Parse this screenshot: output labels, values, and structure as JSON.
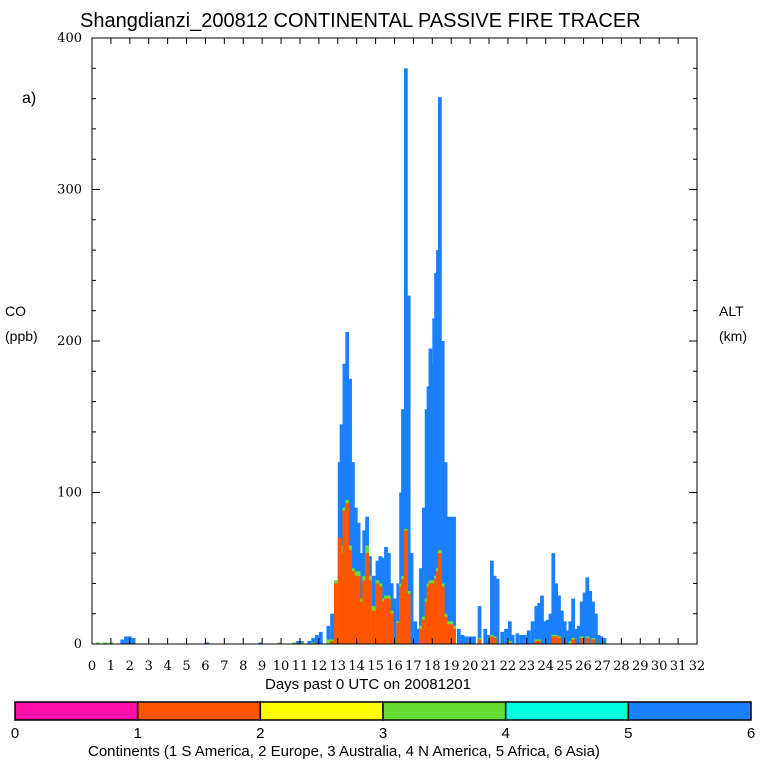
{
  "chart_data": {
    "type": "bar",
    "title": "Shangdianzi_200812 CONTINENTAL PASSIVE FIRE TRACER",
    "panel_label": "a)",
    "ylabel": [
      "CO",
      "(ppb)"
    ],
    "right_label": [
      "ALT",
      "(km)"
    ],
    "xlabel": "Days past 0 UTC on 20081201",
    "ylim": [
      0,
      400
    ],
    "yticks": [
      0,
      100,
      200,
      300,
      400
    ],
    "xlim": [
      0,
      32
    ],
    "xticks": [
      "0",
      "1",
      "2",
      "3",
      "4",
      "5",
      "6",
      "7",
      "8",
      "9",
      "10",
      "11",
      "12",
      "13",
      "14",
      "15",
      "16",
      "17",
      "18",
      "19",
      "20",
      "21",
      "22",
      "23",
      "24",
      "25",
      "26",
      "27",
      "28",
      "29",
      "30",
      "31",
      "32"
    ],
    "bar_width_days": 0.2,
    "series": [
      {
        "name": "Asia",
        "color": "#1a80ff",
        "points": [
          [
            0.2,
            1
          ],
          [
            0.6,
            1
          ],
          [
            0.9,
            1
          ],
          [
            1.5,
            3
          ],
          [
            1.7,
            5
          ],
          [
            1.9,
            5
          ],
          [
            2.1,
            4
          ],
          [
            6.0,
            1
          ],
          [
            8.8,
            1
          ],
          [
            9.8,
            1
          ],
          [
            10.6,
            1
          ],
          [
            10.8,
            2
          ],
          [
            11.0,
            2
          ],
          [
            11.4,
            2
          ],
          [
            11.6,
            4
          ],
          [
            11.8,
            6
          ],
          [
            12.0,
            8
          ],
          [
            12.4,
            12
          ],
          [
            12.6,
            20
          ],
          [
            12.8,
            40
          ],
          [
            13.0,
            120
          ],
          [
            13.1,
            145
          ],
          [
            13.25,
            185
          ],
          [
            13.4,
            206
          ],
          [
            13.55,
            175
          ],
          [
            13.7,
            120
          ],
          [
            13.85,
            90
          ],
          [
            14.0,
            80
          ],
          [
            14.15,
            60
          ],
          [
            14.3,
            75
          ],
          [
            14.45,
            84
          ],
          [
            14.6,
            58
          ],
          [
            14.8,
            45
          ],
          [
            15.0,
            55
          ],
          [
            15.15,
            58
          ],
          [
            15.3,
            57
          ],
          [
            15.45,
            64
          ],
          [
            15.6,
            60
          ],
          [
            15.75,
            40
          ],
          [
            15.9,
            30
          ],
          [
            16.1,
            40
          ],
          [
            16.25,
            100
          ],
          [
            16.35,
            155
          ],
          [
            16.5,
            380
          ],
          [
            16.65,
            230
          ],
          [
            16.8,
            60
          ],
          [
            17.0,
            15
          ],
          [
            17.15,
            10
          ],
          [
            17.3,
            50
          ],
          [
            17.45,
            90
          ],
          [
            17.6,
            155
          ],
          [
            17.7,
            170
          ],
          [
            17.8,
            195
          ],
          [
            17.9,
            185
          ],
          [
            18.0,
            215
          ],
          [
            18.1,
            245
          ],
          [
            18.2,
            260
          ],
          [
            18.3,
            361
          ],
          [
            18.45,
            200
          ],
          [
            18.6,
            120
          ],
          [
            18.75,
            84
          ],
          [
            18.9,
            84
          ],
          [
            19.05,
            84
          ],
          [
            19.3,
            10
          ],
          [
            19.5,
            6
          ],
          [
            19.7,
            5
          ],
          [
            19.9,
            5
          ],
          [
            20.1,
            5
          ],
          [
            20.4,
            25
          ],
          [
            20.7,
            10
          ],
          [
            20.9,
            6
          ],
          [
            21.05,
            55
          ],
          [
            21.2,
            45
          ],
          [
            21.35,
            43
          ],
          [
            21.6,
            8
          ],
          [
            21.8,
            10
          ],
          [
            22.0,
            15
          ],
          [
            22.15,
            6
          ],
          [
            22.4,
            7
          ],
          [
            22.6,
            6
          ],
          [
            22.8,
            6
          ],
          [
            23.0,
            9
          ],
          [
            23.2,
            15
          ],
          [
            23.4,
            25
          ],
          [
            23.55,
            27
          ],
          [
            23.7,
            32
          ],
          [
            23.85,
            15
          ],
          [
            24.0,
            16
          ],
          [
            24.15,
            20
          ],
          [
            24.3,
            60
          ],
          [
            24.45,
            40
          ],
          [
            24.6,
            32
          ],
          [
            24.75,
            22
          ],
          [
            24.9,
            15
          ],
          [
            25.05,
            9
          ],
          [
            25.2,
            15
          ],
          [
            25.35,
            30
          ],
          [
            25.5,
            10
          ],
          [
            25.65,
            12
          ],
          [
            25.8,
            28
          ],
          [
            25.95,
            34
          ],
          [
            26.1,
            44
          ],
          [
            26.25,
            35
          ],
          [
            26.4,
            28
          ],
          [
            26.55,
            20
          ],
          [
            26.7,
            6
          ],
          [
            26.85,
            5
          ],
          [
            27.0,
            4
          ]
        ]
      },
      {
        "name": "N America",
        "color": "#66dd33",
        "points": [
          [
            0.2,
            1
          ],
          [
            0.6,
            1
          ],
          [
            0.9,
            1
          ],
          [
            9.8,
            1
          ],
          [
            10.6,
            1
          ],
          [
            11.0,
            1
          ],
          [
            11.6,
            1
          ],
          [
            12.4,
            3
          ],
          [
            12.6,
            3
          ],
          [
            12.8,
            42
          ],
          [
            13.0,
            70
          ],
          [
            13.1,
            65
          ],
          [
            13.25,
            90
          ],
          [
            13.4,
            95
          ],
          [
            13.55,
            65
          ],
          [
            13.7,
            50
          ],
          [
            13.85,
            48
          ],
          [
            14.0,
            48
          ],
          [
            14.15,
            30
          ],
          [
            14.3,
            45
          ],
          [
            14.45,
            65
          ],
          [
            14.6,
            45
          ],
          [
            14.8,
            25
          ],
          [
            15.0,
            42
          ],
          [
            15.15,
            40
          ],
          [
            15.3,
            30
          ],
          [
            15.45,
            32
          ],
          [
            15.6,
            32
          ],
          [
            15.75,
            22
          ],
          [
            16.1,
            15
          ],
          [
            16.25,
            40
          ],
          [
            16.35,
            45
          ],
          [
            16.5,
            76
          ],
          [
            16.65,
            35
          ],
          [
            17.3,
            12
          ],
          [
            17.45,
            18
          ],
          [
            17.6,
            30
          ],
          [
            17.7,
            40
          ],
          [
            17.8,
            42
          ],
          [
            17.9,
            42
          ],
          [
            18.0,
            40
          ],
          [
            18.1,
            45
          ],
          [
            18.2,
            50
          ],
          [
            18.3,
            62
          ],
          [
            18.45,
            40
          ],
          [
            18.6,
            20
          ],
          [
            18.75,
            15
          ],
          [
            18.9,
            15
          ],
          [
            19.05,
            12
          ],
          [
            20.4,
            4
          ],
          [
            21.05,
            6
          ],
          [
            21.2,
            5
          ],
          [
            22.0,
            2
          ],
          [
            23.4,
            3
          ],
          [
            23.55,
            3
          ],
          [
            24.3,
            6
          ],
          [
            24.45,
            6
          ],
          [
            24.6,
            5
          ],
          [
            25.2,
            2
          ],
          [
            25.35,
            4
          ],
          [
            25.8,
            5
          ],
          [
            26.1,
            5
          ],
          [
            26.4,
            4
          ]
        ]
      },
      {
        "name": "Europe",
        "color": "#ff5500",
        "points": [
          [
            12.6,
            2
          ],
          [
            12.8,
            40
          ],
          [
            13.0,
            70
          ],
          [
            13.1,
            60
          ],
          [
            13.25,
            88
          ],
          [
            13.4,
            93
          ],
          [
            13.55,
            62
          ],
          [
            13.7,
            48
          ],
          [
            13.85,
            45
          ],
          [
            14.0,
            45
          ],
          [
            14.15,
            28
          ],
          [
            14.3,
            42
          ],
          [
            14.45,
            60
          ],
          [
            14.6,
            42
          ],
          [
            14.8,
            22
          ],
          [
            15.0,
            40
          ],
          [
            15.15,
            38
          ],
          [
            15.3,
            28
          ],
          [
            15.45,
            30
          ],
          [
            15.6,
            30
          ],
          [
            15.75,
            20
          ],
          [
            16.1,
            14
          ],
          [
            16.25,
            38
          ],
          [
            16.35,
            43
          ],
          [
            16.5,
            75
          ],
          [
            16.65,
            33
          ],
          [
            17.3,
            10
          ],
          [
            17.45,
            16
          ],
          [
            17.6,
            28
          ],
          [
            17.7,
            38
          ],
          [
            17.8,
            40
          ],
          [
            17.9,
            40
          ],
          [
            18.0,
            38
          ],
          [
            18.1,
            43
          ],
          [
            18.2,
            48
          ],
          [
            18.3,
            60
          ],
          [
            18.45,
            38
          ],
          [
            18.6,
            18
          ],
          [
            18.75,
            13
          ],
          [
            18.9,
            13
          ],
          [
            19.05,
            10
          ],
          [
            20.4,
            3
          ],
          [
            21.05,
            5
          ],
          [
            21.2,
            4
          ],
          [
            22.0,
            1
          ],
          [
            23.4,
            2
          ],
          [
            23.55,
            2
          ],
          [
            24.3,
            5
          ],
          [
            24.45,
            5
          ],
          [
            24.6,
            4
          ],
          [
            25.35,
            3
          ],
          [
            25.8,
            4
          ],
          [
            26.1,
            4
          ],
          [
            26.4,
            3
          ]
        ]
      }
    ],
    "colorbar": {
      "ticks": [
        "0",
        "1",
        "2",
        "3",
        "4",
        "5",
        "6"
      ],
      "colors": [
        "#ff11aa",
        "#ff5500",
        "#ffff00",
        "#66dd33",
        "#00ffdd",
        "#1a80ff"
      ],
      "caption": "Continents (1 S America, 2 Europe, 3 Australia, 4 N America, 5 Africa, 6 Asia)"
    }
  }
}
